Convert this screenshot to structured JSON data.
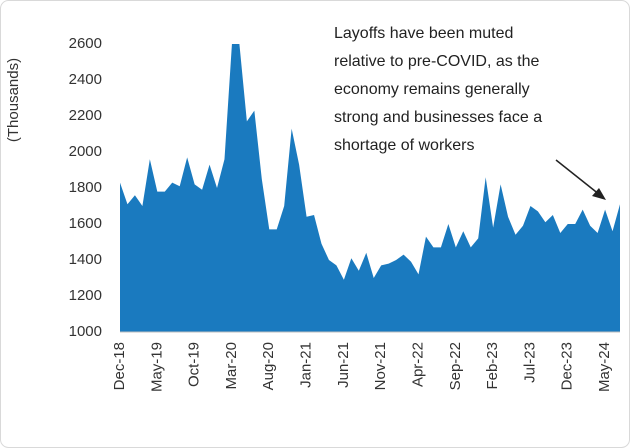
{
  "chart_data": {
    "type": "area",
    "y_axis_label": "(Thousands)",
    "annotation": [
      "Layoffs have been muted",
      "relative to pre-COVID, as the",
      "economy remains generally",
      "strong and businesses face a",
      "shortage of workers"
    ],
    "categories": [
      "Dec-18",
      null,
      null,
      null,
      null,
      "May-19",
      null,
      null,
      null,
      null,
      "Oct-19",
      null,
      null,
      null,
      null,
      "Mar-20",
      null,
      null,
      null,
      null,
      "Aug-20",
      null,
      null,
      null,
      null,
      "Jan-21",
      null,
      null,
      null,
      null,
      "Jun-21",
      null,
      null,
      null,
      null,
      "Nov-21",
      null,
      null,
      null,
      null,
      "Apr-22",
      null,
      null,
      null,
      null,
      "Sep-22",
      null,
      null,
      null,
      null,
      "Feb-23",
      null,
      null,
      null,
      null,
      "Jul-23",
      null,
      null,
      null,
      null,
      "Dec-23",
      null,
      null,
      null,
      null,
      "May-24",
      null,
      null
    ],
    "values": [
      1830,
      1710,
      1760,
      1700,
      1960,
      1780,
      1780,
      1830,
      1810,
      1970,
      1820,
      1790,
      1930,
      1800,
      1960,
      2600,
      2600,
      2170,
      2230,
      1850,
      1570,
      1570,
      1700,
      2130,
      1930,
      1640,
      1650,
      1490,
      1400,
      1370,
      1290,
      1410,
      1340,
      1440,
      1300,
      1370,
      1380,
      1400,
      1430,
      1390,
      1320,
      1530,
      1470,
      1470,
      1600,
      1470,
      1560,
      1470,
      1520,
      1860,
      1580,
      1820,
      1640,
      1540,
      1590,
      1700,
      1670,
      1610,
      1650,
      1550,
      1600,
      1600,
      1680,
      1590,
      1550,
      1680,
      1560,
      1710
    ],
    "color": "#1a7abf",
    "ylim": [
      1000,
      2600
    ],
    "yticks": [
      1000,
      1200,
      1400,
      1600,
      1800,
      2000,
      2200,
      2400,
      2600
    ],
    "grid": false
  }
}
